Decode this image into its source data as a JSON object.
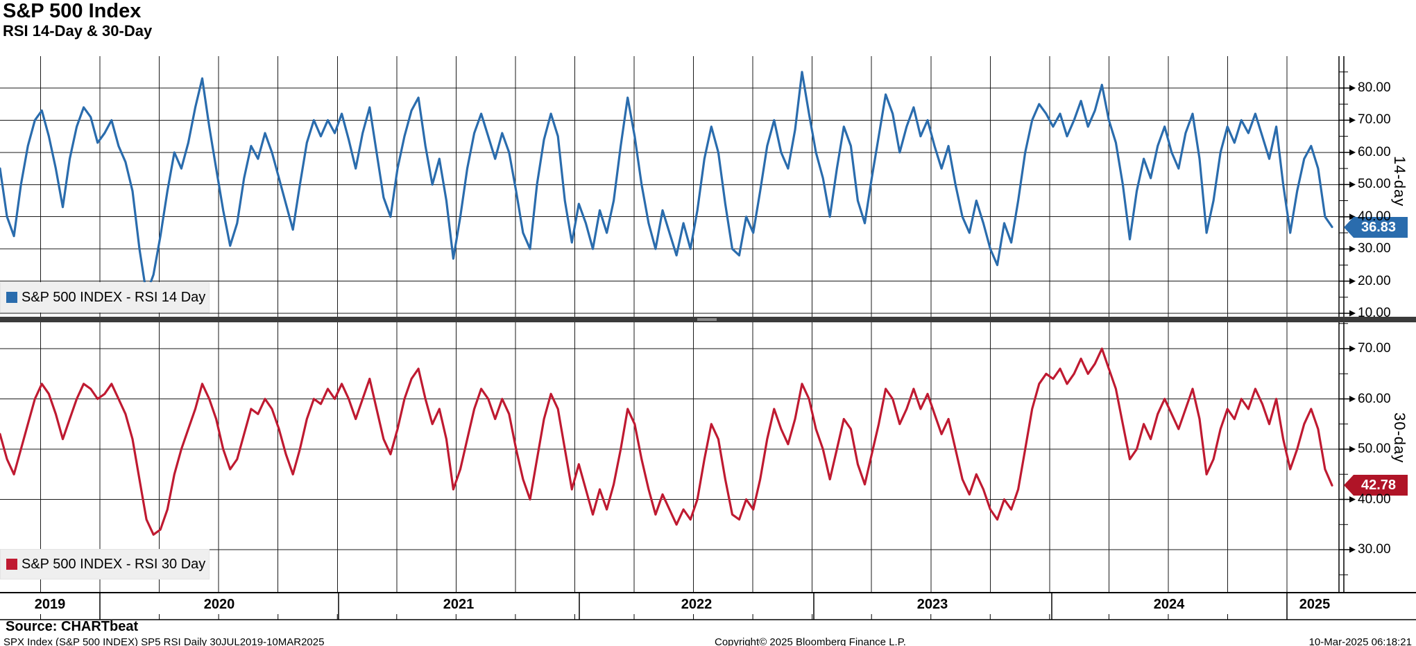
{
  "title": "S&P 500 Index",
  "subtitle": "RSI 14-Day & 30-Day",
  "footer": {
    "source": "Source: CHARTbeat",
    "ticker_line": "SPX Index (S&P 500 INDEX) SP5 RSI  Daily 30JUL2019-10MAR2025",
    "copyright": "Copyright© 2025 Bloomberg Finance L.P.",
    "timestamp": "10-Mar-2025 06:18:21"
  },
  "colors": {
    "rsi14_line": "#2a6cad",
    "rsi14_tag_bg": "#2a6cad",
    "rsi30_line": "#bf1a31",
    "rsi30_tag_bg": "#b01427",
    "grid": "#1a1a1a",
    "divider": "#3b3b3b",
    "legend_bg": "#efefef"
  },
  "chart_data": {
    "type": "line",
    "title": "S&P 500 Index — RSI 14-Day & 30-Day",
    "x_start_label": "30JUL2019",
    "x_end_label": "10MAR2025",
    "x_tick_labels": [
      "2019",
      "2020",
      "2021",
      "2022",
      "2023",
      "2024",
      "2025"
    ],
    "grid": true,
    "legend_position": "bottom-left-of-each-panel",
    "panels": [
      {
        "name": "RSI 14 Day",
        "legend": "S&P 500 INDEX - RSI 14 Day",
        "axis_label": "14-day",
        "axis_side": "right",
        "color": "#2a6cad",
        "last_value": 36.83,
        "last_value_label": "36.83",
        "y_tick_labels": [
          "80.00",
          "70.00",
          "60.00",
          "50.00",
          "40.00",
          "30.00",
          "20.00",
          "10.00"
        ],
        "y_tick_values": [
          80,
          70,
          60,
          50,
          40,
          30,
          20,
          10
        ],
        "y_minor_tick_values": [
          85,
          75,
          65,
          55,
          45,
          35,
          25,
          15
        ],
        "ylim_approx": [
          8,
          94
        ],
        "values": [
          55,
          40,
          34,
          50,
          62,
          70,
          73,
          65,
          55,
          43,
          58,
          68,
          74,
          71,
          63,
          66,
          70,
          62,
          57,
          48,
          30,
          16,
          22,
          34,
          48,
          60,
          55,
          63,
          74,
          83,
          68,
          55,
          42,
          31,
          38,
          52,
          62,
          58,
          66,
          60,
          52,
          44,
          36,
          50,
          63,
          70,
          65,
          70,
          66,
          72,
          64,
          55,
          66,
          74,
          60,
          46,
          40,
          55,
          65,
          73,
          77,
          62,
          50,
          58,
          45,
          27,
          40,
          55,
          66,
          72,
          65,
          58,
          66,
          60,
          48,
          35,
          30,
          50,
          64,
          72,
          65,
          45,
          32,
          44,
          38,
          30,
          42,
          35,
          45,
          62,
          77,
          65,
          50,
          38,
          30,
          42,
          35,
          28,
          38,
          30,
          42,
          58,
          68,
          60,
          44,
          30,
          28,
          40,
          35,
          48,
          62,
          70,
          60,
          55,
          67,
          85,
          72,
          60,
          52,
          40,
          55,
          68,
          62,
          45,
          38,
          52,
          65,
          78,
          72,
          60,
          68,
          74,
          65,
          70,
          62,
          55,
          62,
          50,
          40,
          35,
          45,
          38,
          30,
          25,
          38,
          32,
          45,
          60,
          70,
          75,
          72,
          68,
          72,
          65,
          70,
          76,
          68,
          73,
          81,
          70,
          63,
          50,
          33,
          48,
          58,
          52,
          62,
          68,
          60,
          55,
          66,
          72,
          58,
          35,
          45,
          60,
          68,
          63,
          70,
          66,
          72,
          65,
          58,
          68,
          50,
          35,
          48,
          58,
          62,
          55,
          40,
          36.83
        ]
      },
      {
        "name": "RSI 30 Day",
        "legend": "S&P 500 INDEX - RSI 30 Day",
        "axis_label": "30-day",
        "axis_side": "right",
        "color": "#bf1a31",
        "last_value": 42.78,
        "last_value_label": "42.78",
        "y_tick_labels": [
          "70.00",
          "60.00",
          "50.00",
          "40.00",
          "30.00"
        ],
        "y_tick_values": [
          70,
          60,
          50,
          40,
          30
        ],
        "y_minor_tick_values": [
          75,
          65,
          55,
          45,
          35,
          25
        ],
        "ylim_approx": [
          21,
          75
        ],
        "values": [
          53,
          48,
          45,
          50,
          55,
          60,
          63,
          61,
          57,
          52,
          56,
          60,
          63,
          62,
          60,
          61,
          63,
          60,
          57,
          52,
          44,
          36,
          33,
          34,
          38,
          45,
          50,
          54,
          58,
          63,
          60,
          56,
          50,
          46,
          48,
          53,
          58,
          57,
          60,
          58,
          54,
          49,
          45,
          50,
          56,
          60,
          59,
          62,
          60,
          63,
          60,
          56,
          60,
          64,
          58,
          52,
          49,
          54,
          60,
          64,
          66,
          60,
          55,
          58,
          52,
          42,
          46,
          52,
          58,
          62,
          60,
          56,
          60,
          57,
          50,
          44,
          40,
          48,
          56,
          61,
          58,
          50,
          42,
          47,
          42,
          37,
          42,
          38,
          43,
          50,
          58,
          55,
          48,
          42,
          37,
          41,
          38,
          35,
          38,
          36,
          40,
          48,
          55,
          52,
          44,
          37,
          36,
          40,
          38,
          44,
          52,
          58,
          54,
          51,
          56,
          63,
          60,
          54,
          50,
          44,
          50,
          56,
          54,
          47,
          43,
          49,
          55,
          62,
          60,
          55,
          58,
          62,
          58,
          61,
          57,
          53,
          56,
          50,
          44,
          41,
          45,
          42,
          38,
          36,
          40,
          38,
          42,
          50,
          58,
          63,
          65,
          64,
          66,
          63,
          65,
          68,
          65,
          67,
          70,
          66,
          62,
          55,
          48,
          50,
          55,
          52,
          57,
          60,
          57,
          54,
          58,
          62,
          56,
          45,
          48,
          54,
          58,
          56,
          60,
          58,
          62,
          59,
          55,
          60,
          52,
          46,
          50,
          55,
          58,
          54,
          46,
          42.78
        ]
      }
    ]
  }
}
